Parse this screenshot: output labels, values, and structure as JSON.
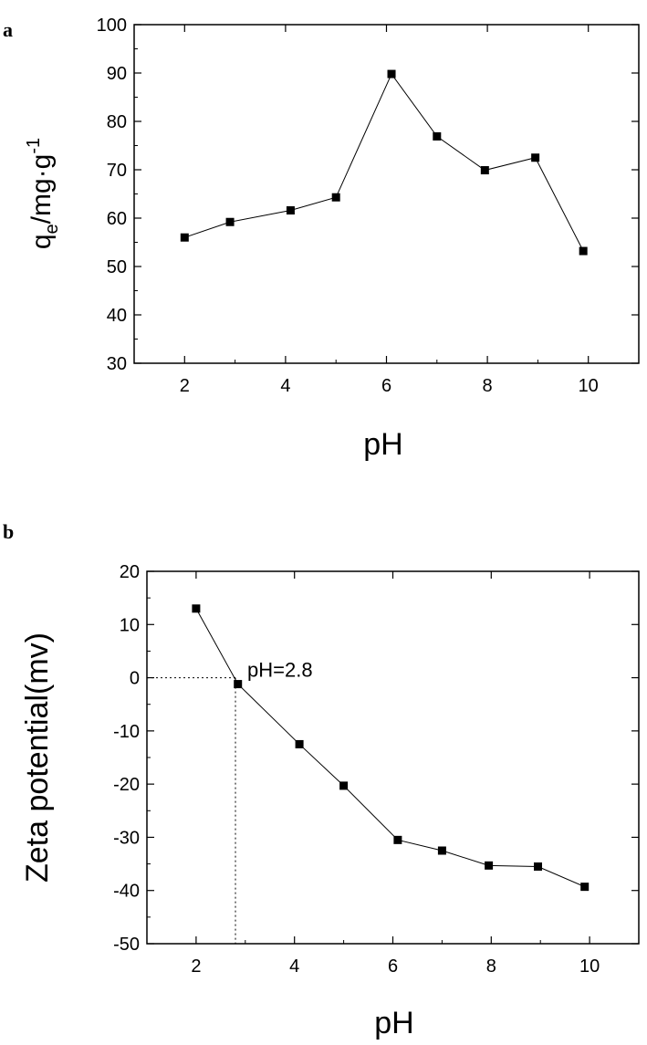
{
  "chart_data": [
    {
      "type": "line",
      "panel_label": "a",
      "xlabel": "pH",
      "ylabel": {
        "base": "q",
        "sub": "e",
        "rest": "/mg·g",
        "sup": "-1"
      },
      "xlim": [
        1,
        11
      ],
      "ylim": [
        30,
        100
      ],
      "xticks": [
        2,
        4,
        6,
        8,
        10
      ],
      "yticks": [
        30,
        40,
        50,
        60,
        70,
        80,
        90,
        100
      ],
      "grid": false,
      "series": [
        {
          "marker": "square",
          "color": "#000000",
          "x": [
            2.0,
            2.9,
            4.1,
            5.0,
            6.1,
            7.0,
            7.95,
            8.95,
            9.9
          ],
          "y": [
            56.0,
            59.2,
            61.6,
            64.3,
            89.8,
            76.9,
            69.9,
            72.5,
            53.2
          ]
        }
      ]
    },
    {
      "type": "line",
      "panel_label": "b",
      "xlabel": "pH",
      "ylabel": "Zeta potential(mv)",
      "xlim": [
        1,
        11
      ],
      "ylim": [
        -50,
        20
      ],
      "xticks": [
        2,
        4,
        6,
        8,
        10
      ],
      "yticks": [
        -50,
        -40,
        -30,
        -20,
        -10,
        0,
        10,
        20
      ],
      "grid": false,
      "annotation": {
        "text": "pH=2.8",
        "x": 2.8,
        "y": 0
      },
      "series": [
        {
          "marker": "square",
          "color": "#000000",
          "x": [
            2.0,
            2.85,
            4.1,
            5.0,
            6.1,
            7.0,
            7.95,
            8.95,
            9.9
          ],
          "y": [
            13.0,
            -1.2,
            -12.5,
            -20.3,
            -30.5,
            -32.5,
            -35.3,
            -35.5,
            -39.3
          ]
        }
      ]
    }
  ]
}
